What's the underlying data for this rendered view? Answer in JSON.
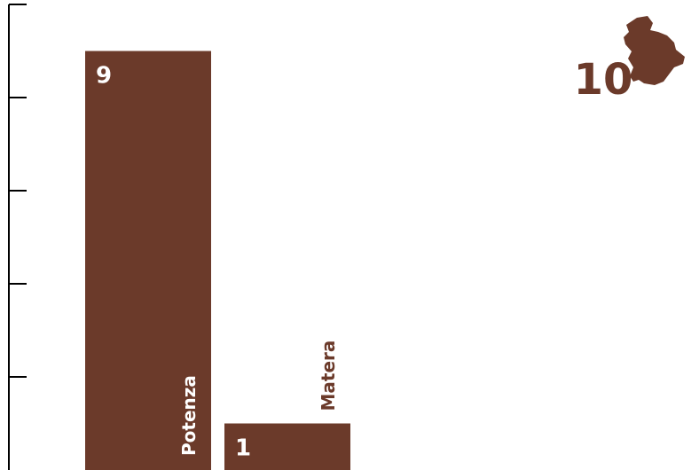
{
  "chart_data": {
    "type": "bar",
    "categories": [
      "Potenza",
      "Matera"
    ],
    "values": [
      9,
      1
    ],
    "ylim": [
      0,
      10
    ],
    "yticks": [
      0,
      2,
      4,
      6,
      8,
      10
    ],
    "tick_labels_shown": false,
    "grid": false,
    "total": "10",
    "region_icon": "basilicata-region-map-icon",
    "colors": {
      "bar": "#6b3a2a",
      "axis": "#000000",
      "value_text_on_bar": "#ffffff",
      "label_text_on_bar": "#ffffff",
      "label_text_off_bar": "#6b3a2a",
      "total": "#6b3a2a"
    }
  }
}
